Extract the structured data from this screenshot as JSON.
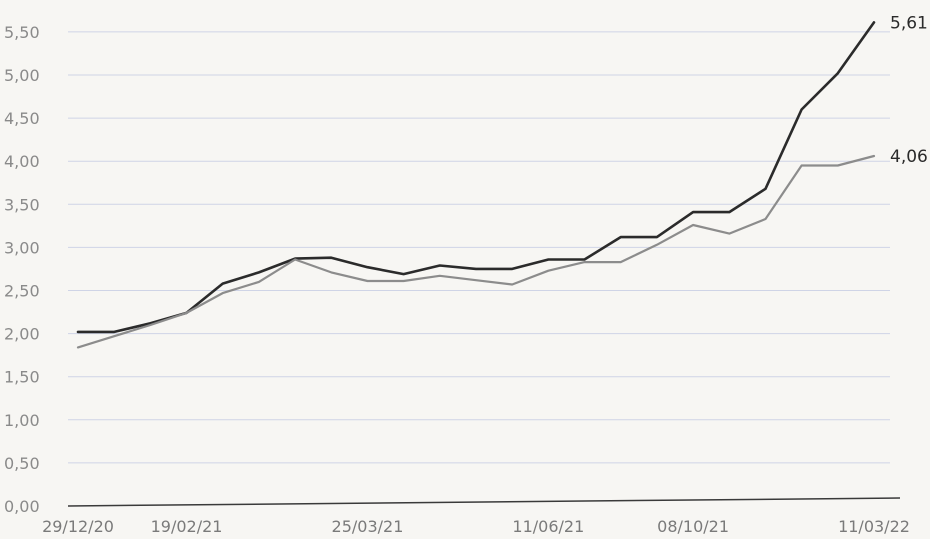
{
  "chart_data": {
    "type": "line",
    "title": "",
    "xlabel": "",
    "ylabel": "",
    "ylim": [
      0,
      5.61
    ],
    "grid": true,
    "yticks": [
      0,
      0.5,
      1.0,
      1.5,
      2.0,
      2.5,
      3.0,
      3.5,
      4.0,
      4.5,
      5.0,
      5.5
    ],
    "ytick_labels": [
      "0,00",
      "0,50",
      "1,00",
      "1,50",
      "2,00",
      "2,50",
      "3,00",
      "3,50",
      "4,00",
      "4,50",
      "5,00",
      "5,50"
    ],
    "xtick_labels": [
      "29/12/20",
      "19/02/21",
      "25/03/21",
      "11/06/21",
      "08/10/21",
      "11/03/22"
    ],
    "xtick_indices": [
      0,
      3,
      8,
      13,
      17,
      22
    ],
    "series": [
      {
        "color": "#2b2b2b",
        "values": [
          2.02,
          2.02,
          2.12,
          2.24,
          2.58,
          2.71,
          2.87,
          2.88,
          2.77,
          2.69,
          2.79,
          2.75,
          2.75,
          2.86,
          2.86,
          3.12,
          3.12,
          3.41,
          3.41,
          3.68,
          4.6,
          5.02,
          5.61
        ],
        "end_label": "5,61"
      },
      {
        "color": "#8c8c8c",
        "values": [
          1.84,
          1.97,
          2.1,
          2.24,
          2.47,
          2.6,
          2.86,
          2.71,
          2.61,
          2.61,
          2.67,
          2.62,
          2.57,
          2.73,
          2.83,
          2.83,
          3.03,
          3.26,
          3.16,
          3.33,
          3.95,
          3.95,
          4.06
        ],
        "end_label": "4,06"
      }
    ]
  }
}
